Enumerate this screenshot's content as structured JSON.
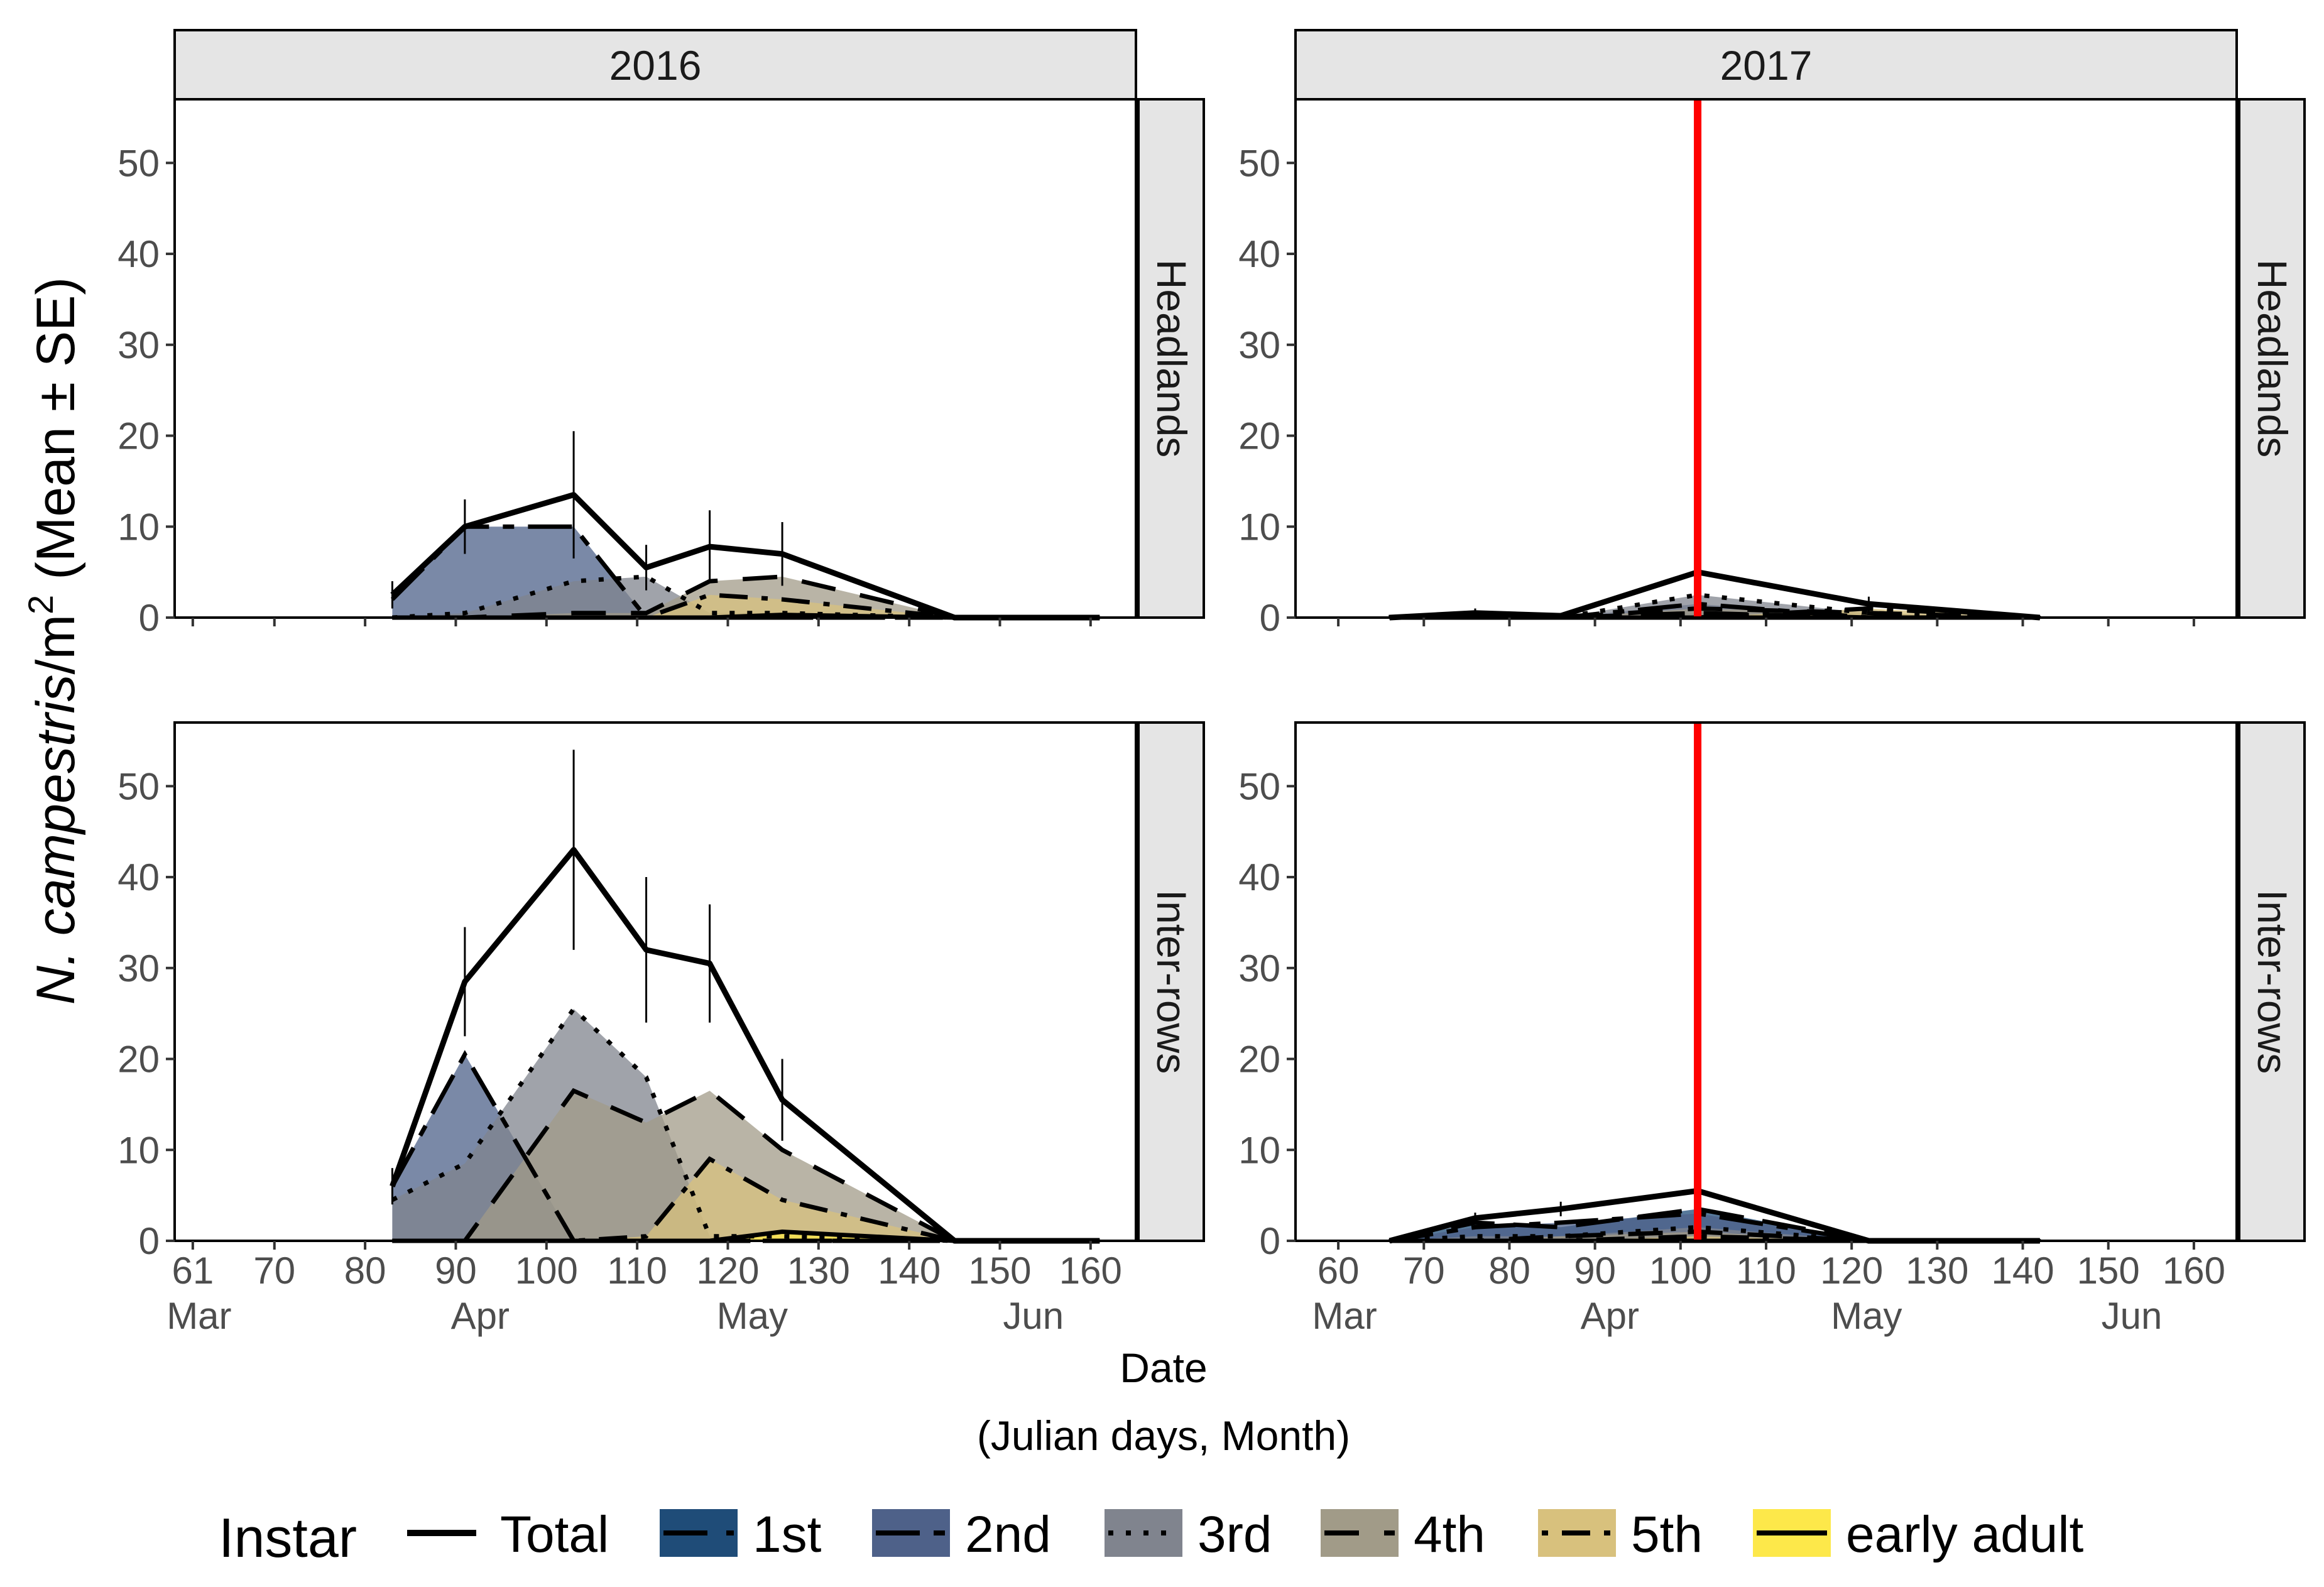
{
  "figure": {
    "y_axis_title_italic": "N. campestris",
    "y_axis_title_unit": "/m",
    "y_axis_title_sup": "2",
    "y_axis_title_rest": " (Mean ± SE)",
    "x_axis_title": "Date",
    "x_axis_subtitle": "(Julian days, Month)",
    "legend_title": "Instar"
  },
  "colors": {
    "strip_bg": "#e5e5e5",
    "red_line": "#ff0000",
    "total": "#000000",
    "1st": "#1f4c78",
    "2nd": "#4e6189",
    "3rd": "#80848e",
    "4th": "#a19b88",
    "5th": "#d8c17d",
    "early adult": "#fde84a"
  },
  "legend": [
    {
      "label": "Total",
      "key": "total"
    },
    {
      "label": "1st",
      "key": "1st"
    },
    {
      "label": "2nd",
      "key": "2nd"
    },
    {
      "label": "3rd",
      "key": "3rd"
    },
    {
      "label": "4th",
      "key": "4th"
    },
    {
      "label": "5th",
      "key": "5th"
    },
    {
      "label": "early adult",
      "key": "early adult"
    }
  ],
  "chart_data": [
    {
      "type": "area",
      "year": "2016",
      "habitat": "Headlands",
      "ylim": [
        0,
        57
      ],
      "y_ticks": [
        0,
        10,
        20,
        30,
        40,
        50
      ],
      "xlim": [
        59,
        165
      ],
      "x": [
        83,
        91,
        103,
        111,
        118,
        126,
        145,
        161
      ],
      "total": [
        2.5,
        10,
        13.5,
        5.5,
        7.8,
        7,
        0,
        0
      ],
      "se": [
        1.5,
        3,
        7,
        2.5,
        4,
        3.5,
        0,
        0
      ],
      "series": [
        {
          "name": "1st",
          "values": [
            0,
            0,
            0,
            0,
            0,
            0,
            0,
            0
          ]
        },
        {
          "name": "2nd",
          "values": [
            2,
            10,
            10,
            0,
            0,
            0,
            0,
            0
          ]
        },
        {
          "name": "3rd",
          "values": [
            0,
            0.5,
            4,
            4.5,
            0.5,
            0.5,
            0,
            0
          ]
        },
        {
          "name": "4th",
          "values": [
            0,
            0,
            0.5,
            0.5,
            4,
            4.5,
            0,
            0
          ]
        },
        {
          "name": "5th",
          "values": [
            0,
            0,
            0,
            0,
            2.5,
            2,
            0,
            0
          ]
        },
        {
          "name": "early adult",
          "values": [
            0,
            0,
            0,
            0,
            0,
            0.3,
            0,
            0
          ]
        }
      ],
      "month_ticks": [
        61,
        70,
        80,
        90,
        100,
        110,
        120,
        130,
        140,
        150,
        160
      ],
      "months": [
        {
          "day": 61,
          "label": "Mar"
        },
        {
          "day": 92,
          "label": "Apr"
        },
        {
          "day": 122,
          "label": "May"
        },
        {
          "day": 153,
          "label": "Jun"
        }
      ]
    },
    {
      "type": "area",
      "year": "2017",
      "habitat": "Headlands",
      "ylim": [
        0,
        57
      ],
      "y_ticks": [
        0,
        10,
        20,
        30,
        40,
        50
      ],
      "xlim": [
        55,
        165
      ],
      "x": [
        66,
        76,
        86,
        102,
        122,
        142
      ],
      "total": [
        0,
        0.5,
        0.2,
        5,
        1.5,
        0
      ],
      "se": [
        0.3,
        0.5,
        0.3,
        1,
        0.8,
        0.2
      ],
      "series": [
        {
          "name": "1st",
          "values": [
            0,
            0.3,
            0,
            0.5,
            0,
            0
          ]
        },
        {
          "name": "2nd",
          "values": [
            0,
            0,
            0,
            1.5,
            0,
            0
          ]
        },
        {
          "name": "3rd",
          "values": [
            0,
            0,
            0,
            2.5,
            0.5,
            0
          ]
        },
        {
          "name": "4th",
          "values": [
            0,
            0,
            0,
            1,
            0.5,
            0
          ]
        },
        {
          "name": "5th",
          "values": [
            0,
            0,
            0,
            0,
            1,
            0
          ]
        },
        {
          "name": "early adult",
          "values": [
            0,
            0,
            0,
            0,
            0,
            0
          ]
        }
      ],
      "ref_line": 102,
      "month_ticks": [
        60,
        70,
        80,
        90,
        100,
        110,
        120,
        130,
        140,
        150,
        160
      ],
      "months": [
        {
          "day": 60,
          "label": "Mar"
        },
        {
          "day": 91,
          "label": "Apr"
        },
        {
          "day": 121,
          "label": "May"
        },
        {
          "day": 152,
          "label": "Jun"
        }
      ]
    },
    {
      "type": "area",
      "year": "2016",
      "habitat": "Inter-rows",
      "ylim": [
        0,
        57
      ],
      "y_ticks": [
        0,
        10,
        20,
        30,
        40,
        50
      ],
      "xlim": [
        59,
        165
      ],
      "x": [
        83,
        91,
        103,
        111,
        118,
        126,
        145,
        161
      ],
      "total": [
        6,
        28.5,
        43,
        32,
        30.5,
        15.5,
        0,
        0
      ],
      "se": [
        2,
        6,
        11,
        8,
        6.5,
        4.5,
        0,
        0
      ],
      "series": [
        {
          "name": "1st",
          "values": [
            0,
            0,
            0,
            0,
            0,
            0,
            0,
            0
          ]
        },
        {
          "name": "2nd",
          "values": [
            6,
            20.5,
            0,
            0,
            0,
            0,
            0,
            0
          ]
        },
        {
          "name": "3rd",
          "values": [
            4.5,
            8.5,
            25.5,
            18,
            0.5,
            0.5,
            0,
            0
          ]
        },
        {
          "name": "4th",
          "values": [
            0,
            0,
            16.5,
            13,
            16.5,
            10,
            0,
            0
          ]
        },
        {
          "name": "5th",
          "values": [
            0,
            0,
            0,
            0.5,
            9,
            4.5,
            0,
            0
          ]
        },
        {
          "name": "early adult",
          "values": [
            0,
            0,
            0,
            0,
            0,
            1,
            0,
            0
          ]
        }
      ],
      "month_ticks": [
        61,
        70,
        80,
        90,
        100,
        110,
        120,
        130,
        140,
        150,
        160
      ],
      "months": [
        {
          "day": 61,
          "label": "Mar"
        },
        {
          "day": 92,
          "label": "Apr"
        },
        {
          "day": 122,
          "label": "May"
        },
        {
          "day": 153,
          "label": "Jun"
        }
      ]
    },
    {
      "type": "area",
      "year": "2017",
      "habitat": "Inter-rows",
      "ylim": [
        0,
        57
      ],
      "y_ticks": [
        0,
        10,
        20,
        30,
        40,
        50
      ],
      "xlim": [
        55,
        165
      ],
      "x": [
        66,
        76,
        86,
        102,
        122,
        142
      ],
      "total": [
        0,
        2.5,
        3.5,
        5.5,
        0,
        0
      ],
      "se": [
        0.2,
        0.6,
        0.8,
        1.2,
        0.2,
        0.2
      ],
      "series": [
        {
          "name": "1st",
          "values": [
            0,
            2,
            1.5,
            3.5,
            0,
            0
          ]
        },
        {
          "name": "2nd",
          "values": [
            0,
            1.5,
            2,
            3,
            0,
            0
          ]
        },
        {
          "name": "3rd",
          "values": [
            0,
            0.5,
            0.5,
            1.5,
            0,
            0
          ]
        },
        {
          "name": "4th",
          "values": [
            0,
            0,
            0.5,
            1,
            0,
            0
          ]
        },
        {
          "name": "5th",
          "values": [
            0,
            0,
            0,
            0.5,
            0,
            0
          ]
        },
        {
          "name": "early adult",
          "values": [
            0,
            0,
            0,
            0,
            0,
            0
          ]
        }
      ],
      "ref_line": 102,
      "month_ticks": [
        60,
        70,
        80,
        90,
        100,
        110,
        120,
        130,
        140,
        150,
        160
      ],
      "months": [
        {
          "day": 60,
          "label": "Mar"
        },
        {
          "day": 91,
          "label": "Apr"
        },
        {
          "day": 121,
          "label": "May"
        },
        {
          "day": 152,
          "label": "Jun"
        }
      ]
    }
  ]
}
